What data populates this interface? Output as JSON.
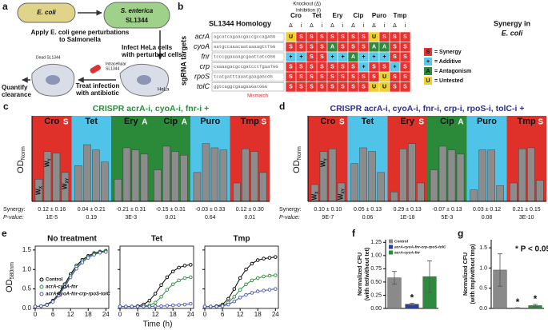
{
  "panel_a": {
    "letter": "a",
    "ecoli": "E. coli",
    "senterica": "S. enterica",
    "strain": "SL1344",
    "apply": [
      "Apply E. coli gene perturbations",
      "to Salmonella"
    ],
    "infect": [
      "Infect HeLa cells",
      "with perturbed cells"
    ],
    "treat": [
      "Treat infection",
      "with antibiotic"
    ],
    "quantify": [
      "Quantify",
      "clearance"
    ],
    "dead": "Dead SL1344",
    "intracellular": [
      "Intracellular",
      "SL1344"
    ],
    "hela": "HeLa"
  },
  "panel_b": {
    "letter": "b",
    "title": "SL1344 Homology",
    "knockout": "Knockout (Δ)",
    "inhibition": "Inhibition (i)",
    "ylabel": "sgRNA targets",
    "drugs": [
      "Cro",
      "Tet",
      "Ery",
      "Cip",
      "Puro",
      "Tmp"
    ],
    "modes": [
      "Δ",
      "i"
    ],
    "rows": [
      {
        "gene": "acrA",
        "seq": "agcatcagaacgaccgccagAGG",
        "calls": [
          "U",
          "S",
          "S",
          "S",
          "S",
          "S",
          "S",
          "S",
          "U",
          "S",
          "S",
          "S"
        ]
      },
      {
        "gene": "cyoA",
        "seq": "aatgccaaacaataaaagttTGG",
        "calls": [
          "S",
          "S",
          "S",
          "S",
          "A",
          "S",
          "S",
          "S",
          "A",
          "A",
          "S",
          "S"
        ]
      },
      {
        "gene": "fnr",
        "seq": "tcccggaaaagcgaattatcGGG",
        "calls": [
          "+",
          "+",
          "S",
          "S",
          "+",
          "+",
          "A",
          "+",
          "+",
          "+",
          "S",
          "S"
        ]
      },
      {
        "gene": "crp",
        "seq": "caaaagacgccgatcctTgaaTGG",
        "calls": [
          "S",
          "S",
          "S",
          "S",
          "S",
          "S",
          "S",
          "+",
          "S",
          "S",
          "+",
          "S"
        ]
      },
      {
        "gene": "rpoS",
        "seq": "tcatgatttaaatgaagaGcGG",
        "calls": [
          "S",
          "S",
          "S",
          "S",
          "S",
          "S",
          "S",
          "S",
          "S",
          "U",
          "S",
          "S"
        ]
      },
      {
        "gene": "tolC",
        "seq": "ggtcaggcgaagaaGatGGG",
        "calls": [
          "S",
          "S",
          "S",
          "S",
          "S",
          "S",
          "S",
          "S",
          "U",
          "U",
          "S",
          "S"
        ]
      }
    ],
    "mismatch": "Mismatch",
    "legend_title": [
      "Synergy in",
      "E. coli"
    ],
    "legend": [
      {
        "code": "S",
        "label": "= Synergy",
        "color": "#e8322f"
      },
      {
        "code": "+",
        "label": "= Additive",
        "color": "#5cc8e8"
      },
      {
        "code": "A",
        "label": "= Antagonism",
        "color": "#2e8b3e"
      },
      {
        "code": "U",
        "label": "= Untested",
        "color": "#f0d02a"
      }
    ]
  },
  "panel_c": {
    "letter": "c",
    "title": "CRISPR acrA-i, cyoA-i, fnr-i +",
    "title_color": "#2e8b3e",
    "ylabel": "OD",
    "ylabel_sub": "Norm",
    "ylim": [
      0,
      1.4
    ],
    "bar_label_base": "W",
    "bar_label_subs": [
      "X",
      "Y",
      "XY"
    ],
    "groups": [
      {
        "name": "Cro",
        "tag": "S",
        "color": "#e0302a",
        "values": [
          0.42,
          0.95,
          0.92,
          0.55
        ]
      },
      {
        "name": "Tet",
        "color": "#4fc3e8",
        "values": [
          0.68,
          1.08,
          0.98,
          0.75
        ]
      },
      {
        "name": "Ery",
        "tag": "A",
        "color": "#2a8a3a",
        "values": [
          0.42,
          1.02,
          0.98,
          0.9
        ]
      },
      {
        "name": "Cip",
        "tag": "A",
        "color": "#2a8a3a",
        "values": [
          0.6,
          1.05,
          0.95,
          0.88
        ]
      },
      {
        "name": "Puro",
        "color": "#4fc3e8",
        "values": [
          0.55,
          1.1,
          1.02,
          0.98
        ]
      },
      {
        "name": "Tmp",
        "tag": "S",
        "color": "#e0302a",
        "values": [
          0.35,
          1.0,
          0.95,
          0.55
        ]
      }
    ],
    "synergy_label": "Synergy:",
    "pvalue_label": "P-value:",
    "synergy": [
      "0.12 ± 0.16",
      "0.04 ± 0.21",
      "-0.21 ± 0.31",
      "-0.15 ± 0.31",
      "-0.03 ± 0.33",
      "0.12 ± 0.30"
    ],
    "pvalues": [
      "1E-5",
      "0.19",
      "3E-3",
      "0.01",
      "0.64",
      "0.01"
    ]
  },
  "panel_d": {
    "letter": "d",
    "title": "CRISPR acrA-i, cyoA-i, fnr-i, crp-i, rpoS-i, tolC-i +",
    "title_color": "#2b2f8f",
    "ylabel": "OD",
    "ylabel_sub": "Norm",
    "ylim": [
      0,
      1.4
    ],
    "bar_label_base": "W",
    "bar_label_subs": [
      "X",
      "Y",
      "XY"
    ],
    "groups": [
      {
        "name": "Cro",
        "tag": "S",
        "color": "#e0302a",
        "values": [
          0.32,
          0.95,
          1.0,
          0.35
        ]
      },
      {
        "name": "Tet",
        "color": "#4fc3e8",
        "values": [
          0.72,
          1.02,
          0.95,
          0.55
        ]
      },
      {
        "name": "Ery",
        "tag": "S",
        "color": "#e0302a",
        "values": [
          0.18,
          1.0,
          1.1,
          0.35
        ]
      },
      {
        "name": "Cip",
        "tag": "A",
        "color": "#2a8a3a",
        "values": [
          0.6,
          1.05,
          0.98,
          0.9
        ]
      },
      {
        "name": "Puro",
        "color": "#4fc3e8",
        "values": [
          0.22,
          0.98,
          0.98,
          0.3
        ]
      },
      {
        "name": "Tmp",
        "tag": "S",
        "color": "#e0302a",
        "values": [
          0.35,
          1.0,
          1.02,
          0.4
        ]
      }
    ],
    "synergy_label": "Synergy:",
    "pvalue_label": "P-value:",
    "synergy": [
      "0.10 ± 0.10",
      "0.05 ± 0.13",
      "0.29 ± 0.13",
      "-0.07 ± 0.13",
      "0.03 ± 0.12",
      "0.21 ± 0.15"
    ],
    "pvalues": [
      "9E-7",
      "0.06",
      "1E-18",
      "5E-3",
      "0.08",
      "3E-10"
    ]
  },
  "panel_e": {
    "letter": "e",
    "type": "line",
    "ylabel": "OD",
    "ylabel_sub": "580nm",
    "xlabel": "Time (h)",
    "xlim": [
      0,
      25
    ],
    "xticks": [
      0,
      6,
      12,
      18,
      24
    ],
    "ylim": [
      0,
      1.6
    ],
    "yticks": [
      {
        "value": 0,
        "label": "0.0"
      },
      0.5,
      {
        "value": 1,
        "label": "1.0"
      },
      1.5
    ],
    "x": [
      0,
      2,
      4,
      6,
      8,
      10,
      12,
      14,
      16,
      18,
      20,
      22,
      24
    ],
    "series": [
      {
        "name": "Control",
        "color": "#000000"
      },
      {
        "name": "acrA-cyoA-fnr",
        "color": "#2e8b3e"
      },
      {
        "name": "acrA-cyoA-fnr-crp-rpoS-tolC",
        "color": "#4a55b8"
      }
    ],
    "panels": [
      {
        "title": "No treatment",
        "values": [
          [
            0.05,
            0.06,
            0.1,
            0.2,
            0.38,
            0.62,
            0.88,
            1.1,
            1.25,
            1.35,
            1.42,
            1.46,
            1.48
          ],
          [
            0.05,
            0.06,
            0.09,
            0.18,
            0.35,
            0.58,
            0.84,
            1.06,
            1.22,
            1.33,
            1.4,
            1.45,
            1.47
          ],
          [
            0.05,
            0.06,
            0.09,
            0.17,
            0.33,
            0.55,
            0.8,
            1.02,
            1.18,
            1.3,
            1.38,
            1.43,
            1.45
          ]
        ]
      },
      {
        "title": "Tet",
        "values": [
          [
            0.05,
            0.05,
            0.05,
            0.06,
            0.1,
            0.2,
            0.38,
            0.6,
            0.8,
            0.95,
            1.05,
            1.1,
            1.12
          ],
          [
            0.05,
            0.05,
            0.05,
            0.05,
            0.06,
            0.08,
            0.15,
            0.3,
            0.48,
            0.62,
            0.72,
            0.78,
            0.8
          ],
          [
            0.05,
            0.05,
            0.05,
            0.05,
            0.05,
            0.05,
            0.06,
            0.06,
            0.07,
            0.08,
            0.09,
            0.1,
            0.12
          ]
        ]
      },
      {
        "title": "Tmp",
        "values": [
          [
            0.05,
            0.05,
            0.06,
            0.1,
            0.25,
            0.5,
            0.78,
            1.0,
            1.15,
            1.24,
            1.28,
            1.3,
            1.32
          ],
          [
            0.05,
            0.05,
            0.05,
            0.07,
            0.15,
            0.3,
            0.48,
            0.62,
            0.72,
            0.78,
            0.82,
            0.84,
            0.85
          ],
          [
            0.05,
            0.05,
            0.05,
            0.06,
            0.1,
            0.18,
            0.28,
            0.35,
            0.4,
            0.44,
            0.46,
            0.48,
            0.5
          ]
        ]
      }
    ]
  },
  "panel_f": {
    "letter": "f",
    "type": "bar",
    "ylabel": [
      "Normalized CFU",
      "(with tet/without tet)"
    ],
    "ylim": [
      0,
      1.3
    ],
    "yticks": [
      {
        "value": 0,
        "label": "0.00"
      },
      0.25,
      {
        "value": 0.5,
        "label": "0.50"
      },
      0.75,
      {
        "value": 1,
        "label": "1.00"
      },
      1.25
    ],
    "series": [
      {
        "name": "Control",
        "color": "#8a8a8a",
        "value": 0.58,
        "error": 0.12
      },
      {
        "name": "acrA-cyoA-fnr-crp-rpoS-tolC",
        "color": "#2b3fa0",
        "value": 0.08,
        "error": 0.02,
        "star": "*"
      },
      {
        "name": "acrA-cyoA-fnr",
        "color": "#2e8b3e",
        "value": 0.6,
        "error": 0.3
      }
    ]
  },
  "panel_g": {
    "letter": "g",
    "type": "bar",
    "ylabel": [
      "Normalized CFU",
      "(with tmp/without tmp)"
    ],
    "ylim": [
      0,
      1.7
    ],
    "yticks": [
      {
        "value": 0,
        "label": "0.0"
      },
      0.5,
      {
        "value": 1,
        "label": "1.0"
      },
      1.5
    ],
    "annotation": "* P < 0.05",
    "series": [
      {
        "color": "#8a8a8a",
        "value": 0.95,
        "error": 0.4
      },
      {
        "color": "#2b3fa0",
        "value": 0.01,
        "error": 0.01,
        "star": "*"
      },
      {
        "color": "#2e8b3e",
        "value": 0.07,
        "error": 0.03,
        "star": "*"
      }
    ]
  }
}
